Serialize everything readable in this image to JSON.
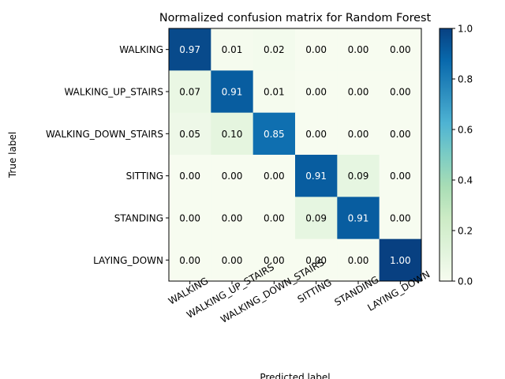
{
  "chart_data": {
    "type": "heatmap",
    "title": "Normalized confusion matrix for Random Forest",
    "xlabel": "Predicted label",
    "ylabel": "True label",
    "x_categories": [
      "WALKING",
      "WALKING_UP_STAIRS",
      "WALKING_DOWN_STAIRS",
      "SITTING",
      "STANDING",
      "LAYING_DOWN"
    ],
    "y_categories": [
      "WALKING",
      "WALKING_UP_STAIRS",
      "WALKING_DOWN_STAIRS",
      "SITTING",
      "STANDING",
      "LAYING_DOWN"
    ],
    "values": [
      [
        0.97,
        0.01,
        0.02,
        0.0,
        0.0,
        0.0
      ],
      [
        0.07,
        0.91,
        0.01,
        0.0,
        0.0,
        0.0
      ],
      [
        0.05,
        0.1,
        0.85,
        0.0,
        0.0,
        0.0
      ],
      [
        0.0,
        0.0,
        0.0,
        0.91,
        0.09,
        0.0
      ],
      [
        0.0,
        0.0,
        0.0,
        0.09,
        0.91,
        0.0
      ],
      [
        0.0,
        0.0,
        0.0,
        0.0,
        0.0,
        1.0
      ]
    ],
    "value_labels": [
      [
        "0.97",
        "0.01",
        "0.02",
        "0.00",
        "0.00",
        "0.00"
      ],
      [
        "0.07",
        "0.91",
        "0.01",
        "0.00",
        "0.00",
        "0.00"
      ],
      [
        "0.05",
        "0.10",
        "0.85",
        "0.00",
        "0.00",
        "0.00"
      ],
      [
        "0.00",
        "0.00",
        "0.00",
        "0.91",
        "0.09",
        "0.00"
      ],
      [
        "0.00",
        "0.00",
        "0.00",
        "0.09",
        "0.91",
        "0.00"
      ],
      [
        "0.00",
        "0.00",
        "0.00",
        "0.00",
        "0.00",
        "1.00"
      ]
    ],
    "colormap": "GnBu",
    "colorbar": {
      "range": [
        0.0,
        1.0
      ],
      "ticks": [
        0.0,
        0.2,
        0.4,
        0.6,
        0.8,
        1.0
      ],
      "tick_labels": [
        "0.0",
        "0.2",
        "0.4",
        "0.6",
        "0.8",
        "1.0"
      ]
    }
  }
}
